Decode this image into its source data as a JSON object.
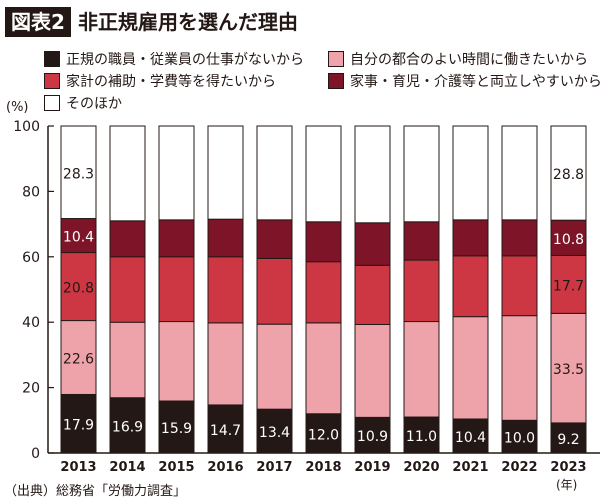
{
  "header": {
    "label": "図表2",
    "title": "非正規雇用を選んだ理由"
  },
  "source": "（出典）総務省「労働力調査」",
  "chart_data": {
    "type": "bar",
    "stacked": true,
    "ylabel": "(%)",
    "xlabel_unit": "(年)",
    "ylim": [
      0,
      100
    ],
    "yticks": [
      "0",
      "20",
      "40",
      "60",
      "80",
      "100"
    ],
    "grid": false,
    "legend_placement": "top",
    "categories": [
      "2013",
      "2014",
      "2015",
      "2016",
      "2017",
      "2018",
      "2019",
      "2020",
      "2021",
      "2022",
      "2023"
    ],
    "series": [
      {
        "name": "正規の職員・従業員の仕事がないから",
        "color": "#231815",
        "label_color": "#ffffff",
        "values": [
          17.9,
          16.9,
          15.9,
          14.7,
          13.4,
          12.0,
          10.9,
          11.0,
          10.4,
          10.0,
          9.2
        ],
        "labels": [
          "17.9",
          "16.9",
          "15.9",
          "14.7",
          "13.4",
          "12.0",
          "10.9",
          "11.0",
          "10.4",
          "10.0",
          "9.2"
        ]
      },
      {
        "name": "自分の都合のよい時間に働きたいから",
        "color": "#eea3ab",
        "label_color": "#231815",
        "values": [
          22.6,
          23.1,
          24.3,
          25.1,
          26.0,
          27.8,
          28.4,
          29.2,
          31.3,
          32.0,
          33.5
        ],
        "labels": [
          "22.6",
          null,
          null,
          null,
          null,
          null,
          null,
          null,
          null,
          null,
          "33.5"
        ]
      },
      {
        "name": "家計の補助・学費等を得たいから",
        "color": "#cd3743",
        "label_color": "#231815",
        "values": [
          20.8,
          20.0,
          19.8,
          20.2,
          20.1,
          18.7,
          18.1,
          18.8,
          18.6,
          18.3,
          17.7
        ],
        "labels": [
          "20.8",
          null,
          null,
          null,
          null,
          null,
          null,
          null,
          null,
          null,
          "17.7"
        ]
      },
      {
        "name": "家事・育児・介護等と両立しやすいから",
        "color": "#7e1427",
        "label_color": "#ffffff",
        "values": [
          10.4,
          11.0,
          11.3,
          11.5,
          11.8,
          12.2,
          13.0,
          11.7,
          11.0,
          11.0,
          10.8
        ],
        "labels": [
          "10.4",
          null,
          null,
          null,
          null,
          null,
          null,
          null,
          null,
          null,
          "10.8"
        ]
      },
      {
        "name": "そのほか",
        "color": "#ffffff",
        "label_color": "#231815",
        "values": [
          28.3,
          29.0,
          28.7,
          28.5,
          28.7,
          29.3,
          29.6,
          29.3,
          28.7,
          28.7,
          28.8
        ],
        "labels": [
          "28.3",
          null,
          null,
          null,
          null,
          null,
          null,
          null,
          null,
          null,
          "28.8"
        ]
      }
    ]
  }
}
